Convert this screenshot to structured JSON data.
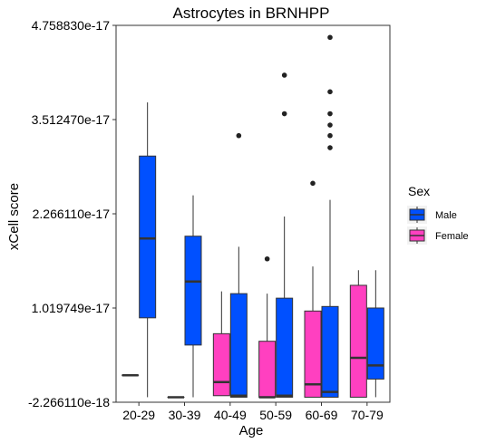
{
  "chart_data": {
    "type": "boxplot",
    "title": "Astrocytes in BRNHPP",
    "xlabel": "Age",
    "ylabel": "xCell score",
    "categories": [
      "20-29",
      "30-39",
      "40-49",
      "50-59",
      "60-69",
      "70-79"
    ],
    "y_ticks": [
      {
        "value": -2.26611e-18,
        "label": "-2.266110e-18"
      },
      {
        "value": 1.019749e-17,
        "label": "1.019749e-17"
      },
      {
        "value": 2.26611e-17,
        "label": "2.266110e-17"
      },
      {
        "value": 3.51247e-17,
        "label": "3.512470e-17"
      },
      {
        "value": 4.75883e-17,
        "label": "4.758830e-17"
      }
    ],
    "ylim": [
      -2.26611e-18,
      4.75883e-17
    ],
    "grid": false,
    "legend": {
      "title": "Sex",
      "placement": "right",
      "entries": [
        {
          "name": "Male",
          "color": "#0050FF"
        },
        {
          "name": "Female",
          "color": "#FF40C0"
        }
      ]
    },
    "series": [
      {
        "name": "Male",
        "color": "#0050FF",
        "boxes": [
          {
            "category": "20-29",
            "whisker_low": -1.6e-18,
            "q1": 8.9e-18,
            "median": 1.94e-17,
            "q3": 3.03e-17,
            "whisker_high": 3.74e-17,
            "outliers": []
          },
          {
            "category": "30-39",
            "whisker_low": -1.6e-18,
            "q1": 5.3e-18,
            "median": 1.37e-17,
            "q3": 1.97e-17,
            "whisker_high": 2.51e-17,
            "outliers": []
          },
          {
            "category": "40-49",
            "whisker_low": -1.6e-18,
            "q1": -1.6e-18,
            "median": -1.4e-18,
            "q3": 1.21e-17,
            "whisker_high": 1.83e-17,
            "outliers": [
              3.3e-17
            ]
          },
          {
            "category": "50-59",
            "whisker_low": -1.6e-18,
            "q1": -1.6e-18,
            "median": -1.4e-18,
            "q3": 1.15e-17,
            "whisker_high": 2.23e-17,
            "outliers": [
              3.59e-17,
              4.1e-17
            ]
          },
          {
            "category": "60-69",
            "whisker_low": -1.6e-18,
            "q1": -1.6e-18,
            "median": -9e-19,
            "q3": 1.04e-17,
            "whisker_high": 2.45e-17,
            "outliers": [
              3.14e-17,
              3.3e-17,
              3.44e-17,
              3.59e-17,
              3.88e-17,
              4.6e-17
            ]
          },
          {
            "category": "70-79",
            "whisker_low": -1.6e-18,
            "q1": 8e-19,
            "median": 2.6e-18,
            "q3": 1.02e-17,
            "whisker_high": 1.52e-17,
            "outliers": []
          }
        ]
      },
      {
        "name": "Female",
        "color": "#FF40C0",
        "boxes": [
          {
            "category": "20-29",
            "whisker_low": 1.3e-18,
            "q1": 1.3e-18,
            "median": 1.3e-18,
            "q3": 1.3e-18,
            "whisker_high": 1.3e-18,
            "outliers": []
          },
          {
            "category": "30-39",
            "whisker_low": -1.6e-18,
            "q1": -1.6e-18,
            "median": -1.6e-18,
            "q3": -1.6e-18,
            "whisker_high": -1.6e-18,
            "outliers": []
          },
          {
            "category": "40-49",
            "whisker_low": -1.4e-18,
            "q1": -1.4e-18,
            "median": 4e-19,
            "q3": 6.8e-18,
            "whisker_high": 1.24e-17,
            "outliers": []
          },
          {
            "category": "50-59",
            "whisker_low": -1.6e-18,
            "q1": -1.6e-18,
            "median": -1.6e-18,
            "q3": 5.8e-18,
            "whisker_high": 1.21e-17,
            "outliers": [
              1.67e-17
            ]
          },
          {
            "category": "60-69",
            "whisker_low": -1.6e-18,
            "q1": -1.6e-18,
            "median": 1e-19,
            "q3": 9.8e-18,
            "whisker_high": 1.57e-17,
            "outliers": [
              2.67e-17
            ]
          },
          {
            "category": "70-79",
            "whisker_low": -1.6e-18,
            "q1": -1.6e-18,
            "median": 3.6e-18,
            "q3": 1.32e-17,
            "whisker_high": 1.52e-17,
            "outliers": []
          }
        ]
      }
    ]
  }
}
